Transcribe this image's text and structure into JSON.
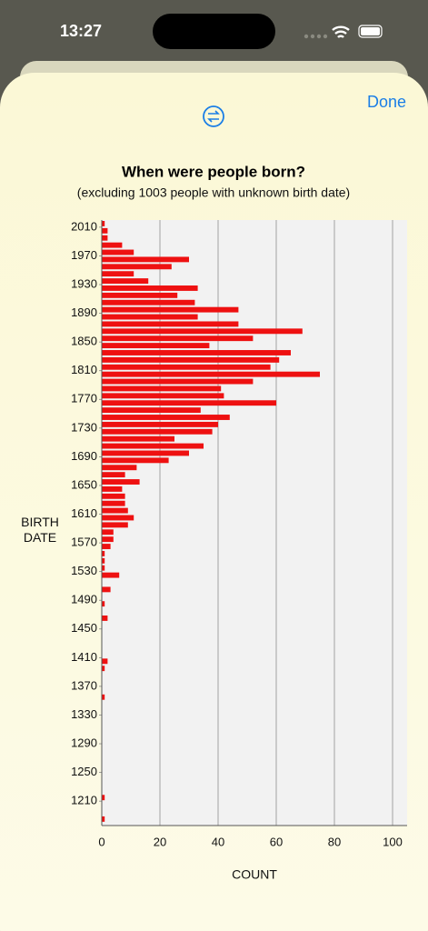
{
  "status_bar": {
    "time": "13:27"
  },
  "toolbar": {
    "done": "Done"
  },
  "chart_data": {
    "type": "histogram",
    "orientation": "horizontal",
    "title": "When were people born?",
    "subtitle": "(excluding 1003 people with unknown birth date)",
    "y_label": "BIRTH DATE",
    "x_label": "COUNT",
    "bins": [
      1180,
      1190,
      1200,
      1210,
      1220,
      1230,
      1240,
      1250,
      1260,
      1270,
      1280,
      1290,
      1300,
      1310,
      1320,
      1330,
      1340,
      1350,
      1360,
      1370,
      1380,
      1390,
      1400,
      1410,
      1420,
      1430,
      1440,
      1450,
      1460,
      1470,
      1480,
      1490,
      1500,
      1510,
      1520,
      1530,
      1540,
      1550,
      1560,
      1570,
      1580,
      1590,
      1600,
      1610,
      1620,
      1630,
      1640,
      1650,
      1660,
      1670,
      1680,
      1690,
      1700,
      1710,
      1720,
      1730,
      1740,
      1750,
      1760,
      1770,
      1780,
      1790,
      1800,
      1810,
      1820,
      1830,
      1840,
      1850,
      1860,
      1870,
      1880,
      1890,
      1900,
      1910,
      1920,
      1930,
      1940,
      1950,
      1960,
      1970,
      1980,
      1990,
      2000,
      2010,
      2020
    ],
    "values": [
      1,
      0,
      0,
      1,
      0,
      0,
      0,
      0,
      0,
      0,
      0,
      0,
      0,
      0,
      0,
      0,
      0,
      1,
      0,
      0,
      0,
      1,
      2,
      0,
      0,
      0,
      0,
      0,
      2,
      0,
      1,
      0,
      3,
      0,
      6,
      1,
      1,
      1,
      3,
      4,
      4,
      9,
      11,
      9,
      8,
      8,
      7,
      13,
      8,
      12,
      23,
      30,
      35,
      25,
      38,
      40,
      44,
      34,
      60,
      42,
      41,
      52,
      75,
      58,
      61,
      65,
      37,
      52,
      69,
      47,
      33,
      47,
      32,
      26,
      33,
      16,
      11,
      24,
      30,
      11,
      7,
      2,
      2,
      1
    ],
    "color": "#ee1111",
    "ylim": [
      1176,
      2020
    ],
    "yticks": [
      1210,
      1250,
      1290,
      1330,
      1370,
      1410,
      1450,
      1490,
      1530,
      1570,
      1610,
      1650,
      1690,
      1730,
      1770,
      1810,
      1850,
      1890,
      1930,
      1970,
      2010
    ],
    "xlim": [
      0,
      105
    ],
    "xticks": [
      0,
      20,
      40,
      60,
      80,
      100
    ],
    "grid": true
  }
}
